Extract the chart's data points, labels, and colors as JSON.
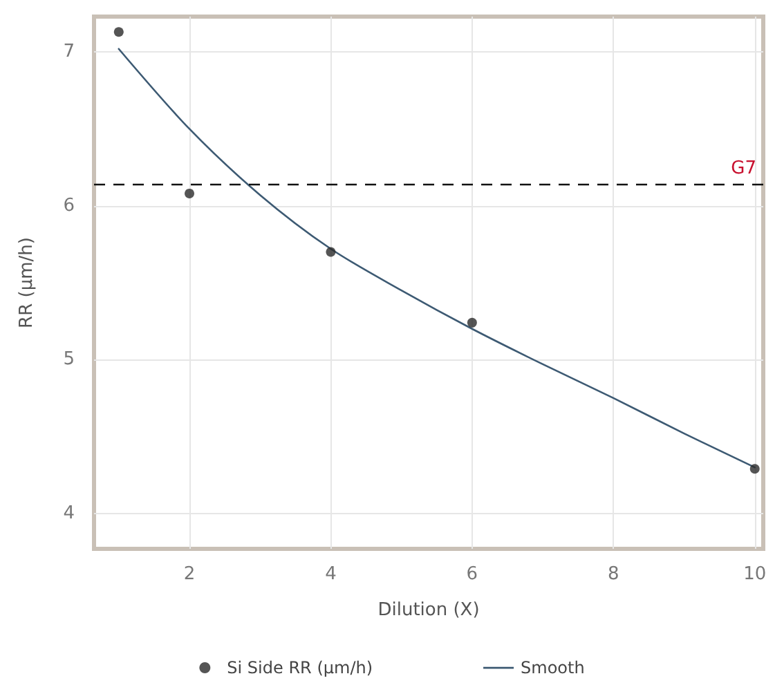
{
  "chart_data": {
    "type": "scatter",
    "xlabel": "Dilution (X)",
    "ylabel": "RR (µm/h)",
    "xlim": [
      0.65,
      10.12
    ],
    "xticks": [
      2,
      4,
      6,
      8,
      10
    ],
    "ylim": [
      3.77,
      7.23
    ],
    "yticks": [
      4,
      5,
      6,
      7
    ],
    "grid": true,
    "legend": "bottom",
    "marker": "circle",
    "series": [
      {
        "name": "Si Side RR (µm/h)",
        "color": "#2b2b2b",
        "x": [
          1,
          2,
          4,
          6,
          10
        ],
        "values": [
          7.13,
          6.08,
          5.7,
          5.24,
          4.29
        ]
      },
      {
        "name": "Smooth",
        "type": "line",
        "color": "#3d5a73",
        "marker": "none",
        "line_style": "solid",
        "x": [
          1,
          2,
          3,
          4,
          5,
          6,
          7,
          8,
          9,
          10
        ],
        "values": [
          7.02,
          6.5,
          6.07,
          5.72,
          5.45,
          5.2,
          4.97,
          4.75,
          4.52,
          4.3
        ]
      }
    ],
    "ref_lines": [
      {
        "axis": "y",
        "value": 6.14,
        "label": "G7",
        "color": "#111111",
        "line_style": "dashed"
      }
    ]
  }
}
